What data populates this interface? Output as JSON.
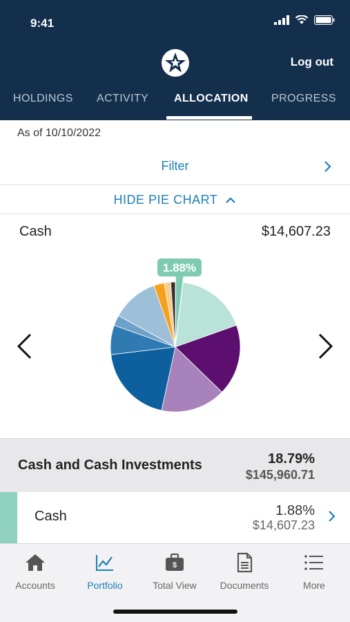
{
  "status": {
    "time": "9:41"
  },
  "header": {
    "logout_label": "Log out",
    "tabs": [
      {
        "label": "HOLDINGS",
        "active": false
      },
      {
        "label": "ACTIVITY",
        "active": false
      },
      {
        "label": "ALLOCATION",
        "active": true
      },
      {
        "label": "PROGRESS",
        "active": false
      }
    ]
  },
  "content": {
    "as_of": "As of 10/10/2022",
    "filter_label": "Filter",
    "pie_toggle_label": "HIDE PIE CHART",
    "selected": {
      "name": "Cash",
      "value": "$14,607.23"
    }
  },
  "chart_data": {
    "type": "pie",
    "highlight_label": "1.88%",
    "slices": [
      {
        "value": 1.88,
        "color": "#7fcbb2",
        "selected": true
      },
      {
        "value": 17.5,
        "color": "#b9e2d9"
      },
      {
        "value": 17.5,
        "color": "#5c0f6e"
      },
      {
        "value": 16.0,
        "color": "#a882bb"
      },
      {
        "value": 19.5,
        "color": "#0e5f9e"
      },
      {
        "value": 7.2,
        "color": "#2f7ab3"
      },
      {
        "value": 2.6,
        "color": "#6ea1c9"
      },
      {
        "value": 11.5,
        "color": "#9dbfd8"
      },
      {
        "value": 2.6,
        "color": "#f5a11b"
      },
      {
        "value": 1.6,
        "color": "#f7cd8e"
      },
      {
        "value": 1.12,
        "color": "#333333"
      }
    ]
  },
  "groups": [
    {
      "name": "Cash and Cash Investments",
      "percent": "18.79%",
      "value": "$145,960.71"
    }
  ],
  "items": [
    {
      "name": "Cash",
      "percent": "1.88%",
      "value": "$14,607.23",
      "color": "#8fd1bd"
    }
  ],
  "bottom_nav": [
    {
      "label": "Accounts",
      "icon": "home-icon",
      "active": false
    },
    {
      "label": "Portfolio",
      "icon": "chart-icon",
      "active": true
    },
    {
      "label": "Total View",
      "icon": "briefcase-icon",
      "active": false
    },
    {
      "label": "Documents",
      "icon": "document-icon",
      "active": false
    },
    {
      "label": "More",
      "icon": "list-icon",
      "active": false
    }
  ],
  "colors": {
    "header": "#132f4c",
    "accent": "#1a7fb8"
  }
}
